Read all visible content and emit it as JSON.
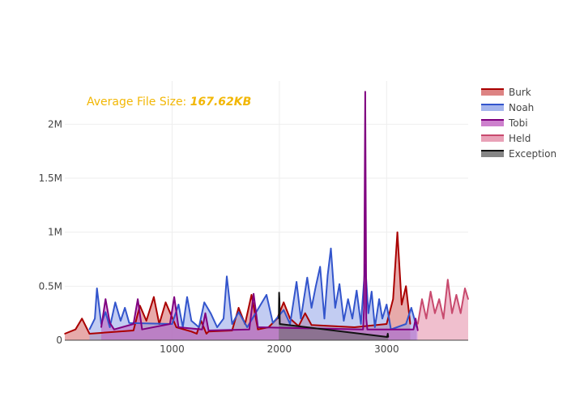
{
  "annotation": {
    "prefix": "Average File Size: ",
    "value": "167.62KB",
    "color": "#f2b705"
  },
  "chart_data": {
    "type": "area",
    "title": "",
    "xlabel": "",
    "ylabel": "",
    "xlim": [
      0,
      3760
    ],
    "ylim": [
      0,
      2400000
    ],
    "xticks": [
      1000,
      2000,
      3000
    ],
    "xtick_labels": [
      "1000",
      "2000",
      "3000"
    ],
    "yticks": [
      0,
      500000,
      1000000,
      1500000,
      2000000
    ],
    "ytick_labels": [
      "0",
      "0.5M",
      "1M",
      "1.5M",
      "2M"
    ],
    "grid": true,
    "legend_position": "right",
    "series": [
      {
        "name": "Burk",
        "line_color": "#aa0000",
        "fill_color": "#d46464",
        "x": [
          0,
          100,
          160,
          230,
          640,
          700,
          760,
          830,
          880,
          940,
          1040,
          1180,
          1230,
          1270,
          1320,
          1340,
          1560,
          1620,
          1680,
          1740,
          1800,
          1900,
          1980,
          2040,
          2100,
          2180,
          2240,
          2300,
          2700,
          3000,
          3060,
          3100,
          3140,
          3180,
          3220
        ],
        "y": [
          60000,
          100000,
          200000,
          60000,
          90000,
          320000,
          180000,
          400000,
          150000,
          350000,
          120000,
          80000,
          60000,
          180000,
          60000,
          80000,
          90000,
          300000,
          150000,
          420000,
          100000,
          120000,
          200000,
          350000,
          200000,
          130000,
          250000,
          140000,
          120000,
          150000,
          380000,
          1000000,
          330000,
          500000,
          150000
        ]
      },
      {
        "name": "Noah",
        "line_color": "#3355cc",
        "fill_color": "#8fa3e8",
        "x": [
          230,
          280,
          300,
          340,
          380,
          420,
          470,
          520,
          560,
          600,
          1000,
          1060,
          1100,
          1140,
          1180,
          1250,
          1300,
          1360,
          1420,
          1480,
          1510,
          1560,
          1620,
          1700,
          1880,
          1940,
          2040,
          2100,
          2160,
          2200,
          2260,
          2300,
          2340,
          2380,
          2420,
          2450,
          2480,
          2520,
          2560,
          2600,
          2640,
          2680,
          2720,
          2760,
          2800,
          2830,
          2860,
          2890,
          2930,
          2960,
          3000,
          3040,
          3180,
          3230,
          3280
        ],
        "y": [
          100000,
          200000,
          480000,
          150000,
          260000,
          120000,
          350000,
          180000,
          300000,
          160000,
          150000,
          330000,
          120000,
          400000,
          180000,
          120000,
          350000,
          250000,
          120000,
          200000,
          590000,
          150000,
          260000,
          120000,
          420000,
          160000,
          280000,
          150000,
          540000,
          200000,
          580000,
          300000,
          500000,
          680000,
          200000,
          600000,
          850000,
          300000,
          520000,
          180000,
          380000,
          200000,
          460000,
          150000,
          700000,
          250000,
          450000,
          120000,
          380000,
          200000,
          330000,
          100000,
          150000,
          300000,
          120000
        ]
      },
      {
        "name": "Tobi",
        "line_color": "#800080",
        "fill_color": "#c060c0",
        "x": [
          340,
          380,
          420,
          460,
          640,
          680,
          720,
          980,
          1020,
          1060,
          1280,
          1310,
          1340,
          1720,
          1760,
          1800,
          2780,
          2790,
          2800,
          2810,
          2820,
          3250,
          3270,
          3290
        ],
        "y": [
          120000,
          380000,
          160000,
          100000,
          150000,
          380000,
          100000,
          150000,
          400000,
          120000,
          100000,
          250000,
          90000,
          100000,
          430000,
          120000,
          100000,
          300000,
          2300000,
          200000,
          100000,
          100000,
          200000,
          90000
        ]
      },
      {
        "name": "Held",
        "line_color": "#c84a6e",
        "fill_color": "#e48aa5",
        "x": [
          3290,
          3330,
          3370,
          3410,
          3450,
          3490,
          3530,
          3570,
          3610,
          3650,
          3690,
          3730,
          3760
        ],
        "y": [
          150000,
          380000,
          200000,
          450000,
          250000,
          380000,
          200000,
          560000,
          250000,
          420000,
          250000,
          480000,
          380000
        ]
      },
      {
        "name": "Exception",
        "line_color": "#111111",
        "fill_color": "#666666",
        "x": [
          1995,
          1998,
          2001,
          2004,
          3005,
          3010,
          3015
        ],
        "y": [
          200000,
          440000,
          380000,
          150000,
          30000,
          60000,
          30000
        ]
      }
    ]
  }
}
